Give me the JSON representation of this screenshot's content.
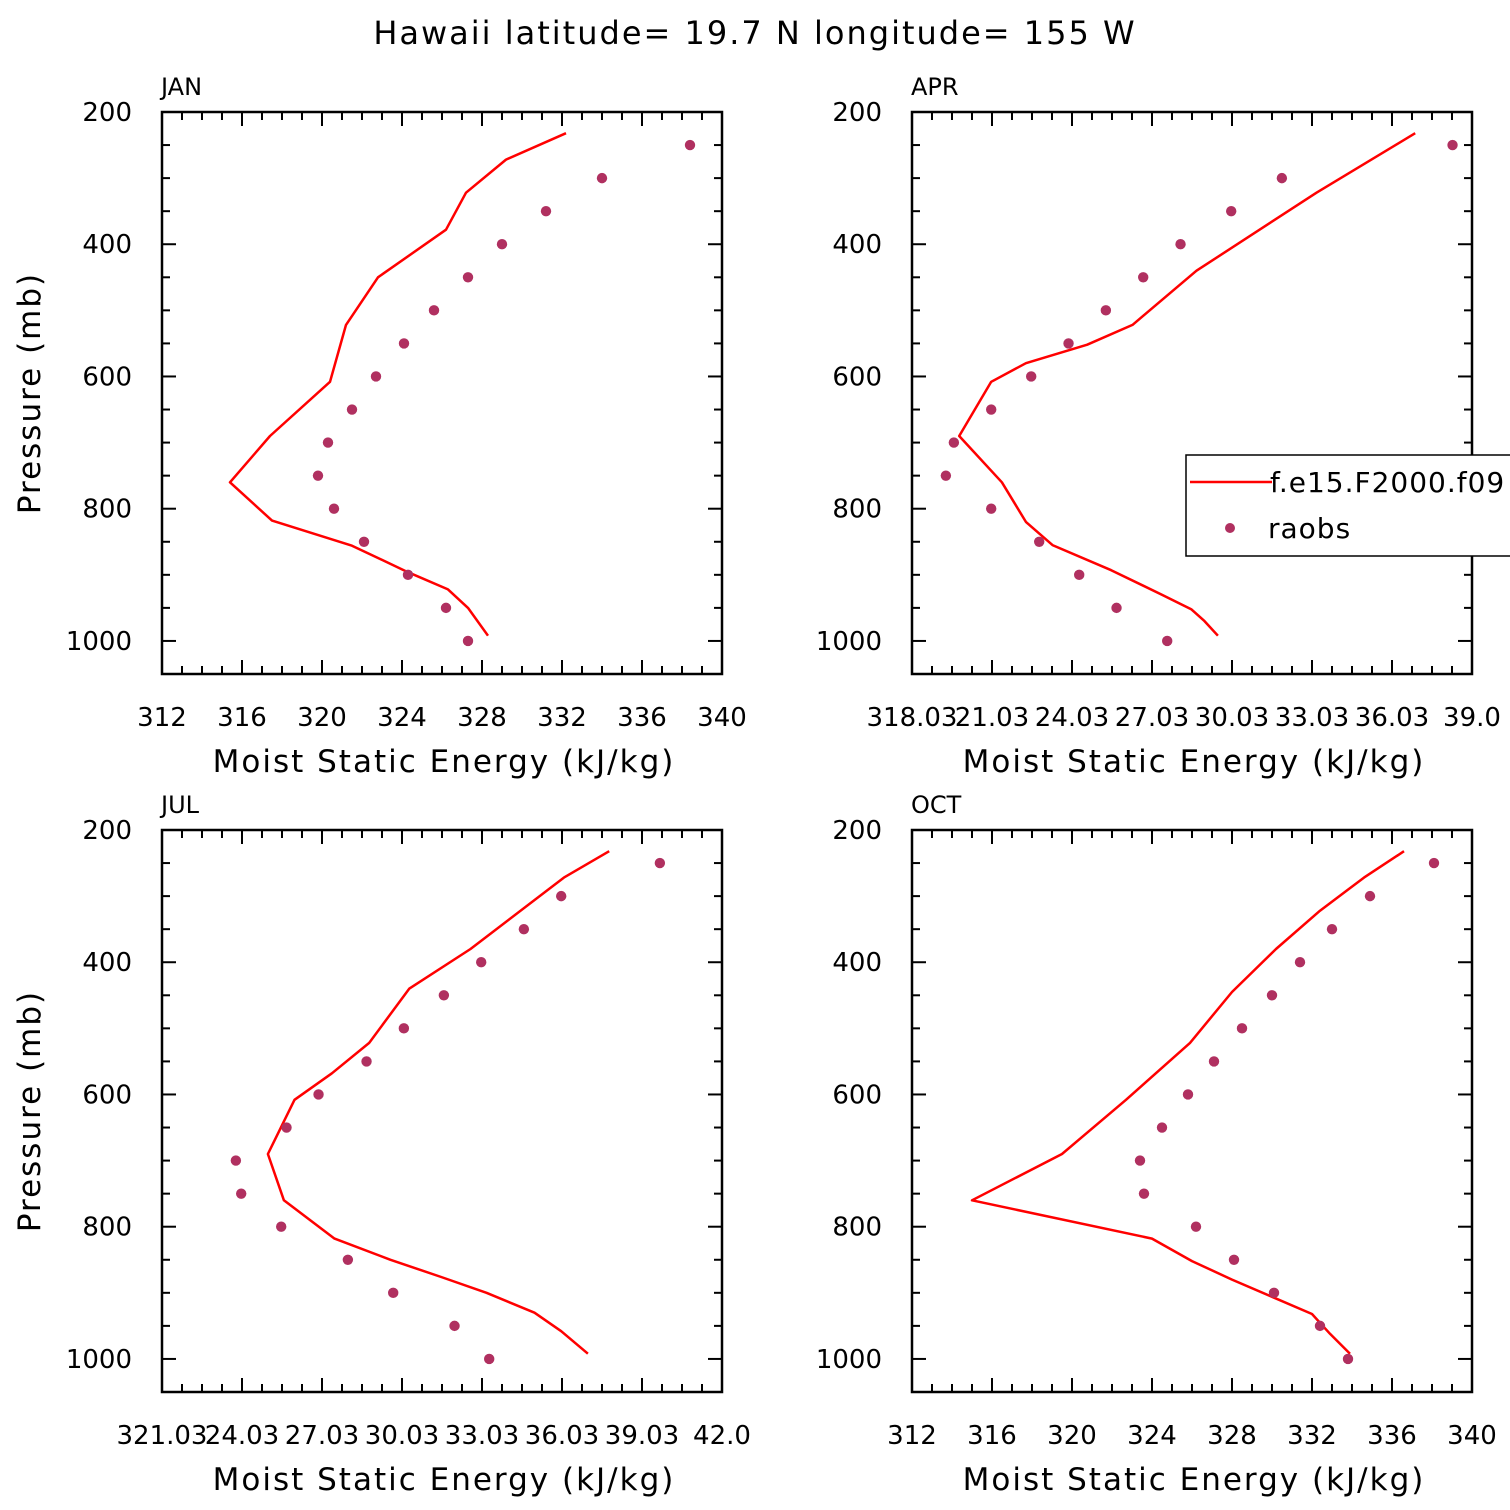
{
  "figure": {
    "title": "Hawaii  latitude= 19.7 N longitude= 155 W"
  },
  "colors": {
    "model_line": "#ff0000",
    "raobs_marker": "#b03060",
    "axis": "#000000",
    "background": "#ffffff"
  },
  "legend": {
    "model_label": "f.e15.F2000.f09",
    "obs_label": "raobs"
  },
  "chart_data": [
    {
      "type": "line",
      "panel": "JAN",
      "xlabel": "Moist Static Energy (kJ/kg)",
      "ylabel": "Pressure (mb)",
      "xlim": [
        312,
        340
      ],
      "ylim": [
        1050,
        200
      ],
      "x_ticks": [
        312,
        316,
        320,
        324,
        328,
        332,
        336,
        340
      ],
      "x_tick_labels": [
        "312",
        "316",
        "320",
        "324",
        "328",
        "332",
        "336",
        "340"
      ],
      "y_ticks": [
        200,
        400,
        600,
        800,
        1000
      ],
      "y_tick_labels": [
        "200",
        "400",
        "600",
        "800",
        "1000"
      ],
      "series": [
        {
          "name": "f.e15.F2000.f09",
          "style": "line",
          "points": [
            [
              328.3,
              992
            ],
            [
              327.3,
              950
            ],
            [
              326.3,
              922
            ],
            [
              324.3,
              896
            ],
            [
              321.5,
              856
            ],
            [
              317.5,
              818
            ],
            [
              315.4,
              760
            ],
            [
              317.4,
              690
            ],
            [
              320.4,
              608
            ],
            [
              321.2,
              522
            ],
            [
              322.8,
              450
            ],
            [
              326.2,
              378
            ],
            [
              327.2,
              322
            ],
            [
              329.2,
              272
            ],
            [
              332.2,
              232
            ]
          ]
        },
        {
          "name": "raobs",
          "style": "marker",
          "points": [
            [
              327.3,
              1000
            ],
            [
              326.2,
              950
            ],
            [
              324.3,
              900
            ],
            [
              322.1,
              850
            ],
            [
              320.6,
              800
            ],
            [
              319.8,
              750
            ],
            [
              320.3,
              700
            ],
            [
              321.5,
              650
            ],
            [
              322.7,
              600
            ],
            [
              324.1,
              550
            ],
            [
              325.6,
              500
            ],
            [
              327.3,
              450
            ],
            [
              329.0,
              400
            ],
            [
              331.2,
              350
            ],
            [
              334.0,
              300
            ],
            [
              338.4,
              250
            ]
          ]
        }
      ]
    },
    {
      "type": "line",
      "panel": "APR",
      "xlabel": "Moist Static Energy (kJ/kg)",
      "ylabel": "",
      "xlim": [
        318.03,
        339.03
      ],
      "ylim": [
        1050,
        200
      ],
      "x_ticks": [
        318.03,
        321.03,
        324.03,
        327.03,
        330.03,
        333.03,
        336.03,
        339.03
      ],
      "x_tick_labels": [
        "318.03",
        "21.03",
        "24.03",
        "27.03",
        "30.03",
        "33.03",
        "36.03",
        "39.0"
      ],
      "y_ticks": [
        200,
        400,
        600,
        800,
        1000
      ],
      "y_tick_labels": [
        "200",
        "400",
        "600",
        "800",
        "1000"
      ],
      "series": [
        {
          "name": "f.e15.F2000.f09",
          "style": "line",
          "points": [
            [
              329.5,
              992
            ],
            [
              329.0,
              970
            ],
            [
              328.5,
              952
            ],
            [
              327.4,
              930
            ],
            [
              325.5,
              893
            ],
            [
              323.3,
              855
            ],
            [
              322.3,
              820
            ],
            [
              321.4,
              760
            ],
            [
              319.8,
              690
            ],
            [
              321.0,
              608
            ],
            [
              322.3,
              580
            ],
            [
              324.6,
              552
            ],
            [
              326.3,
              522
            ],
            [
              328.7,
              440
            ],
            [
              333.2,
              322
            ],
            [
              336.9,
              232
            ]
          ]
        },
        {
          "name": "raobs",
          "style": "marker",
          "points": [
            [
              327.6,
              1000
            ],
            [
              325.7,
              950
            ],
            [
              324.3,
              900
            ],
            [
              322.8,
              850
            ],
            [
              321.0,
              800
            ],
            [
              319.3,
              750
            ],
            [
              319.6,
              700
            ],
            [
              321.0,
              650
            ],
            [
              322.5,
              600
            ],
            [
              323.9,
              550
            ],
            [
              325.3,
              500
            ],
            [
              326.7,
              450
            ],
            [
              328.1,
              400
            ],
            [
              330.0,
              350
            ],
            [
              331.9,
              300
            ],
            [
              338.3,
              250
            ]
          ]
        }
      ]
    },
    {
      "type": "line",
      "panel": "JUL",
      "xlabel": "Moist Static Energy (kJ/kg)",
      "ylabel": "Pressure (mb)",
      "xlim": [
        321.03,
        342.03
      ],
      "ylim": [
        1050,
        200
      ],
      "x_ticks": [
        321.03,
        324.03,
        327.03,
        330.03,
        333.03,
        336.03,
        339.03,
        342.03
      ],
      "x_tick_labels": [
        "321.03",
        "24.03",
        "27.03",
        "30.03",
        "33.03",
        "36.03",
        "39.03",
        "42.0"
      ],
      "y_ticks": [
        200,
        400,
        600,
        800,
        1000
      ],
      "y_tick_labels": [
        "200",
        "400",
        "600",
        "800",
        "1000"
      ],
      "series": [
        {
          "name": "f.e15.F2000.f09",
          "style": "line",
          "points": [
            [
              337.0,
              992
            ],
            [
              336.0,
              958
            ],
            [
              335.0,
              930
            ],
            [
              333.2,
              900
            ],
            [
              331.5,
              876
            ],
            [
              329.6,
              850
            ],
            [
              327.5,
              818
            ],
            [
              325.6,
              760
            ],
            [
              325.0,
              690
            ],
            [
              326.0,
              608
            ],
            [
              327.4,
              568
            ],
            [
              328.8,
              522
            ],
            [
              330.3,
              440
            ],
            [
              332.6,
              380
            ],
            [
              336.1,
              272
            ],
            [
              337.8,
              232
            ]
          ]
        },
        {
          "name": "raobs",
          "style": "marker",
          "points": [
            [
              333.3,
              1000
            ],
            [
              332.0,
              950
            ],
            [
              329.7,
              900
            ],
            [
              328.0,
              850
            ],
            [
              325.5,
              800
            ],
            [
              324.0,
              750
            ],
            [
              323.8,
              700
            ],
            [
              325.7,
              650
            ],
            [
              326.9,
              600
            ],
            [
              328.7,
              550
            ],
            [
              330.1,
              500
            ],
            [
              331.6,
              450
            ],
            [
              333.0,
              400
            ],
            [
              334.6,
              350
            ],
            [
              336.0,
              300
            ],
            [
              339.7,
              250
            ]
          ]
        }
      ]
    },
    {
      "type": "line",
      "panel": "OCT",
      "xlabel": "Moist Static Energy (kJ/kg)",
      "ylabel": "",
      "xlim": [
        312,
        340
      ],
      "ylim": [
        1050,
        200
      ],
      "x_ticks": [
        312,
        316,
        320,
        324,
        328,
        332,
        336,
        340
      ],
      "x_tick_labels": [
        "312",
        "316",
        "320",
        "324",
        "328",
        "332",
        "336",
        "340"
      ],
      "y_ticks": [
        200,
        400,
        600,
        800,
        1000
      ],
      "y_tick_labels": [
        "200",
        "400",
        "600",
        "800",
        "1000"
      ],
      "series": [
        {
          "name": "f.e15.F2000.f09",
          "style": "line",
          "points": [
            [
              333.9,
              992
            ],
            [
              332.9,
              962
            ],
            [
              332.0,
              932
            ],
            [
              330.0,
              906
            ],
            [
              328.0,
              880
            ],
            [
              326.0,
              852
            ],
            [
              324.0,
              818
            ],
            [
              315.0,
              760
            ],
            [
              319.5,
              690
            ],
            [
              322.7,
              608
            ],
            [
              325.9,
              522
            ],
            [
              328.0,
              445
            ],
            [
              330.2,
              380
            ],
            [
              332.4,
              322
            ],
            [
              334.6,
              272
            ],
            [
              336.6,
              232
            ]
          ]
        },
        {
          "name": "raobs",
          "style": "marker",
          "points": [
            [
              333.8,
              1000
            ],
            [
              332.4,
              950
            ],
            [
              330.1,
              900
            ],
            [
              328.1,
              850
            ],
            [
              326.2,
              800
            ],
            [
              323.6,
              750
            ],
            [
              323.4,
              700
            ],
            [
              324.5,
              650
            ],
            [
              325.8,
              600
            ],
            [
              327.1,
              550
            ],
            [
              328.5,
              500
            ],
            [
              330.0,
              450
            ],
            [
              331.4,
              400
            ],
            [
              333.0,
              350
            ],
            [
              334.9,
              300
            ],
            [
              338.1,
              250
            ]
          ]
        }
      ]
    }
  ]
}
